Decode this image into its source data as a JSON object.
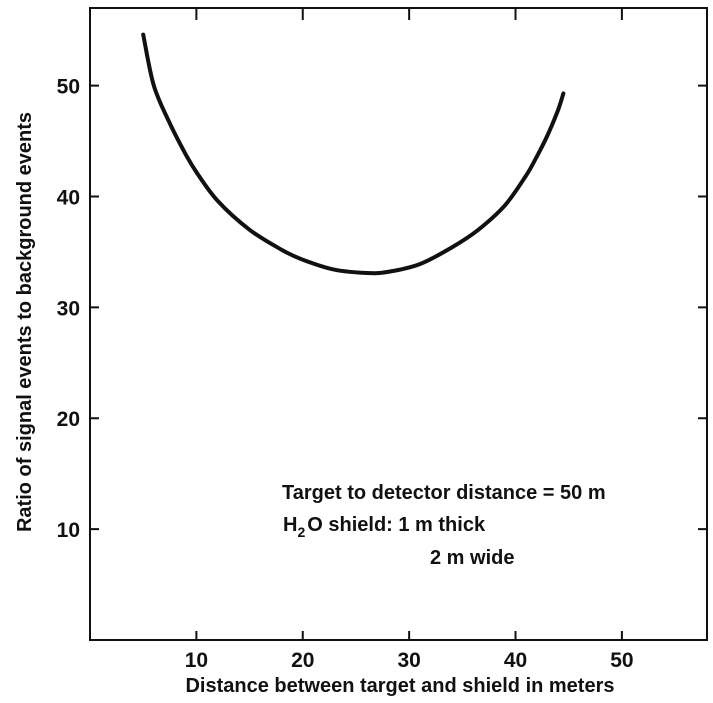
{
  "chart_data": {
    "type": "line",
    "xlabel": "Distance between target and shield in meters",
    "ylabel": "Ratio of signal events to background events",
    "xlim": [
      0,
      58
    ],
    "ylim": [
      0,
      57
    ],
    "x_ticks": [
      10,
      20,
      30,
      40,
      50
    ],
    "y_ticks": [
      10,
      20,
      30,
      40,
      50
    ],
    "x_tick_labels": [
      "10",
      "20",
      "30",
      "40",
      "50"
    ],
    "y_tick_labels": [
      "10",
      "20",
      "30",
      "40",
      "50"
    ],
    "grid": false,
    "series": [
      {
        "color": "#111111",
        "x": [
          5.0,
          6.0,
          7.5,
          9.0,
          10.0,
          12.0,
          15.0,
          18.0,
          20.0,
          23.0,
          26.0,
          28.0,
          31.0,
          34.0,
          36.5,
          39.0,
          41.0,
          42.0,
          43.0,
          44.0,
          44.5
        ],
        "y": [
          54.6,
          50.0,
          46.6,
          43.8,
          42.2,
          39.6,
          37.0,
          35.2,
          34.3,
          33.4,
          33.1,
          33.2,
          33.9,
          35.4,
          37.0,
          39.2,
          41.9,
          43.6,
          45.5,
          47.8,
          49.3
        ]
      }
    ],
    "annotations": {
      "line1": "Target to detector distance = 50 m",
      "line2_prefix": "H",
      "line2_subscript": "2",
      "line2_suffix": "O shield:  1 m thick",
      "line3": "2 m wide"
    }
  }
}
